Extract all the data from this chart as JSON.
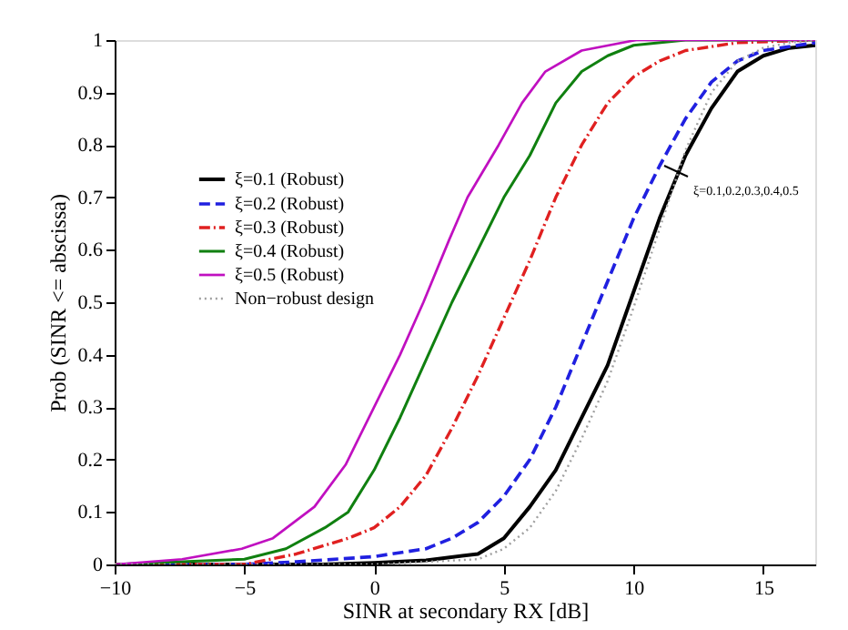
{
  "chart_data": {
    "type": "line",
    "xlabel": "SINR at secondary RX [dB]",
    "ylabel": "Prob (SINR <= abscissa)",
    "xlim": [
      -10,
      17
    ],
    "xticks": [
      -10,
      -5,
      0,
      5,
      10,
      15
    ],
    "ylim": [
      0,
      1
    ],
    "yticks": [
      0,
      0.1,
      0.2,
      0.3,
      0.4,
      0.5,
      0.6,
      0.7,
      0.8,
      0.9,
      1
    ],
    "grid": false,
    "legend": "top left",
    "annotations": [
      "ξ=0.1,0.2,0.3,0.4,0.5"
    ],
    "series": [
      {
        "name": "ξ=0.1 (Robust)",
        "color": "#000000",
        "line_style": "solid",
        "x": [
          -10,
          -2,
          0,
          2,
          4,
          5,
          6,
          7,
          8,
          9,
          10,
          11,
          12,
          13,
          14,
          15,
          16,
          17
        ],
        "values": [
          0,
          0,
          0.003,
          0.008,
          0.02,
          0.05,
          0.11,
          0.18,
          0.28,
          0.38,
          0.52,
          0.66,
          0.78,
          0.87,
          0.94,
          0.97,
          0.985,
          0.99
        ]
      },
      {
        "name": "ξ=0.2 (Robust)",
        "color": "#2020e0",
        "line_style": "dashed",
        "x": [
          -10,
          -5,
          -3,
          0,
          2,
          3,
          4,
          5,
          6,
          7,
          8,
          9,
          10,
          11,
          12,
          13,
          14,
          15,
          17
        ],
        "values": [
          0,
          0,
          0.005,
          0.015,
          0.03,
          0.05,
          0.08,
          0.13,
          0.2,
          0.3,
          0.42,
          0.54,
          0.66,
          0.76,
          0.85,
          0.92,
          0.96,
          0.98,
          0.995
        ]
      },
      {
        "name": "ξ=0.3 (Robust)",
        "color": "#e02020",
        "line_style": "dashdot",
        "x": [
          -10,
          -5,
          -3,
          -1,
          0,
          1,
          2,
          3,
          4,
          5,
          6,
          7,
          8,
          9,
          10,
          11,
          12,
          14,
          17
        ],
        "values": [
          0,
          0,
          0.02,
          0.05,
          0.07,
          0.11,
          0.17,
          0.26,
          0.36,
          0.47,
          0.58,
          0.7,
          0.8,
          0.88,
          0.93,
          0.96,
          0.98,
          0.995,
          1
        ]
      },
      {
        "name": "ξ=0.4 (Robust)",
        "color": "#108010",
        "line_style": "solid",
        "x": [
          -10,
          -5,
          -3.4,
          -1.9,
          -1,
          0,
          1,
          2,
          3,
          4,
          5,
          6,
          7,
          8,
          9,
          10,
          12,
          17
        ],
        "values": [
          0,
          0.01,
          0.03,
          0.07,
          0.1,
          0.18,
          0.28,
          0.39,
          0.5,
          0.6,
          0.7,
          0.78,
          0.88,
          0.94,
          0.97,
          0.99,
          1,
          1
        ]
      },
      {
        "name": "ξ=0.5 (Robust)",
        "color": "#c010c0",
        "line_style": "solid",
        "x": [
          -10,
          -7.4,
          -5.1,
          -3.9,
          -2.3,
          -1.1,
          0,
          1,
          1.9,
          2.9,
          3.6,
          4.8,
          5.7,
          6.6,
          8,
          10.1,
          17
        ],
        "values": [
          0,
          0.01,
          0.03,
          0.05,
          0.11,
          0.19,
          0.3,
          0.4,
          0.5,
          0.62,
          0.7,
          0.8,
          0.88,
          0.94,
          0.98,
          1,
          1
        ]
      },
      {
        "name": "Non−robust design",
        "color": "#a0a0a0",
        "line_style": "dotted",
        "x": [
          -10,
          0,
          4,
          5,
          6,
          7,
          8,
          9,
          10,
          11,
          12,
          13,
          14,
          15,
          16,
          17
        ],
        "values": [
          0,
          0,
          0.01,
          0.03,
          0.07,
          0.14,
          0.24,
          0.35,
          0.49,
          0.64,
          0.79,
          0.9,
          0.96,
          0.985,
          0.995,
          1
        ]
      }
    ]
  }
}
